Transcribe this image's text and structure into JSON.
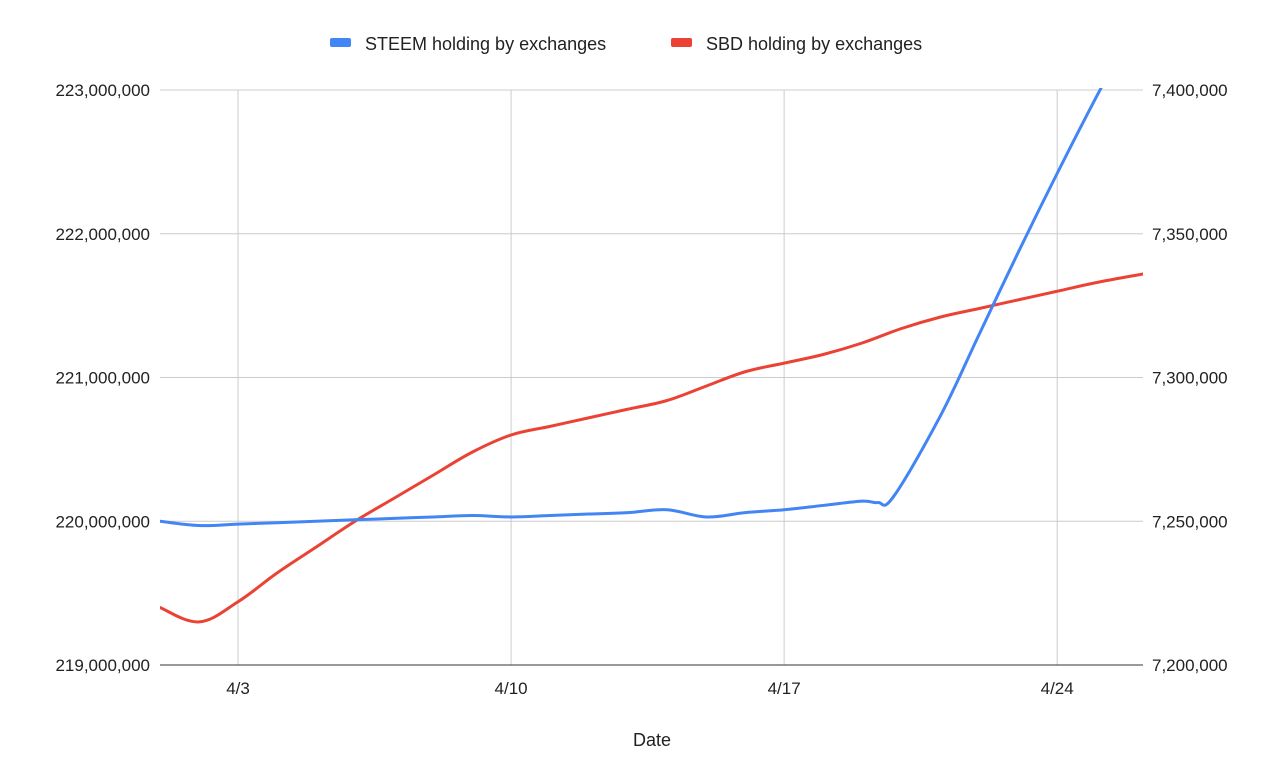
{
  "chart_data": {
    "type": "line",
    "title": "",
    "xlabel": "Date",
    "ylabel_left": "",
    "ylabel_right": "",
    "x_ticks": [
      "4/3",
      "4/10",
      "4/17",
      "4/24"
    ],
    "x_tick_values": [
      3,
      10,
      17,
      24
    ],
    "xlim": [
      1,
      26.2
    ],
    "left_axis": {
      "ylim": [
        219000000,
        223000000
      ],
      "ticks": [
        219000000,
        220000000,
        221000000,
        222000000,
        223000000
      ],
      "tick_labels": [
        "219,000,000",
        "220,000,000",
        "221,000,000",
        "222,000,000",
        "223,000,000"
      ]
    },
    "right_axis": {
      "ylim": [
        7200000,
        7400000
      ],
      "ticks": [
        7200000,
        7250000,
        7300000,
        7350000,
        7400000
      ],
      "tick_labels": [
        "7,200,000",
        "7,250,000",
        "7,300,000",
        "7,350,000",
        "7,400,000"
      ]
    },
    "grid": true,
    "legend_position": "top",
    "series": [
      {
        "name": "STEEM holding by exchanges",
        "axis": "left",
        "color": "#4285F4",
        "x": [
          1,
          2,
          3,
          4,
          5,
          6,
          7,
          8,
          9,
          10,
          11,
          12,
          13,
          14,
          15,
          16,
          17,
          18,
          19,
          19.4,
          19.8,
          21,
          22,
          23,
          24,
          25,
          26.2
        ],
        "values": [
          220000000,
          219970000,
          219980000,
          219990000,
          220000000,
          220010000,
          220020000,
          220030000,
          220040000,
          220030000,
          220040000,
          220050000,
          220060000,
          220080000,
          220030000,
          220060000,
          220080000,
          220110000,
          220140000,
          220130000,
          220170000,
          220730000,
          221300000,
          221870000,
          222420000,
          222950000,
          223560000
        ]
      },
      {
        "name": "SBD holding by exchanges",
        "axis": "right",
        "color": "#EA4335",
        "x": [
          1,
          2,
          3,
          4,
          5,
          6,
          7,
          8,
          9,
          10,
          11,
          12,
          13,
          14,
          15,
          16,
          17,
          18,
          19,
          20,
          21,
          22,
          23,
          24,
          25,
          26.2
        ],
        "values": [
          7220000,
          7215000,
          7222000,
          7232000,
          7241000,
          7250000,
          7258000,
          7266000,
          7274000,
          7280000,
          7283000,
          7286000,
          7289000,
          7292000,
          7297000,
          7302000,
          7305000,
          7308000,
          7312000,
          7317000,
          7321000,
          7324000,
          7327000,
          7330000,
          7333000,
          7336000
        ]
      }
    ]
  }
}
